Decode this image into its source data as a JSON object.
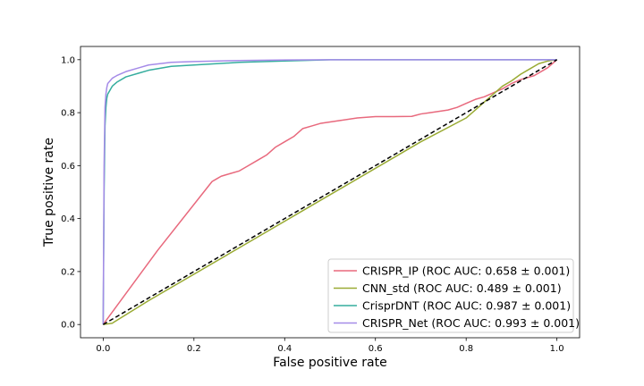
{
  "chart_data": {
    "type": "line",
    "title": "",
    "xlabel": "False positive rate",
    "ylabel": "True positive rate",
    "xlim": [
      -0.05,
      1.05
    ],
    "ylim": [
      -0.05,
      1.05
    ],
    "xticks": [
      "0.0",
      "0.2",
      "0.4",
      "0.6",
      "0.8",
      "1.0"
    ],
    "yticks": [
      "0.0",
      "0.2",
      "0.4",
      "0.6",
      "0.8",
      "1.0"
    ],
    "grid": false,
    "legend_position": "lower-right",
    "reference_line": {
      "x": [
        0,
        1
      ],
      "y": [
        0,
        1
      ],
      "color": "#000000",
      "style": "dashed"
    },
    "series": [
      {
        "name": "CRISPR_IP (ROC AUC: 0.658 ± 0.001)",
        "color": "#e8697d",
        "x": [
          0,
          0.002,
          0.12,
          0.24,
          0.25,
          0.26,
          0.28,
          0.3,
          0.32,
          0.34,
          0.36,
          0.38,
          0.4,
          0.42,
          0.44,
          0.46,
          0.48,
          0.52,
          0.56,
          0.6,
          0.64,
          0.68,
          0.7,
          0.72,
          0.74,
          0.76,
          0.78,
          0.8,
          0.82,
          0.84,
          0.86,
          0.88,
          0.9,
          0.92,
          0.95,
          0.98,
          1.0
        ],
        "y": [
          0,
          0.005,
          0.28,
          0.54,
          0.55,
          0.56,
          0.57,
          0.58,
          0.6,
          0.62,
          0.64,
          0.67,
          0.69,
          0.71,
          0.74,
          0.75,
          0.76,
          0.77,
          0.78,
          0.785,
          0.785,
          0.786,
          0.795,
          0.8,
          0.805,
          0.81,
          0.82,
          0.835,
          0.85,
          0.86,
          0.875,
          0.89,
          0.91,
          0.925,
          0.94,
          0.97,
          1.0
        ]
      },
      {
        "name": "CNN_std (ROC AUC: 0.489 ± 0.001)",
        "color": "#9aab34",
        "x": [
          0,
          0.02,
          0.1,
          0.3,
          0.5,
          0.7,
          0.8,
          0.82,
          0.84,
          0.86,
          0.88,
          0.9,
          0.92,
          0.94,
          0.96,
          0.98,
          1.0
        ],
        "y": [
          0,
          0.005,
          0.09,
          0.29,
          0.49,
          0.69,
          0.78,
          0.81,
          0.84,
          0.87,
          0.9,
          0.92,
          0.945,
          0.965,
          0.985,
          0.995,
          1.0
        ]
      },
      {
        "name": "CrisprDNT (ROC AUC: 0.987 ± 0.001)",
        "color": "#35ad9e",
        "x": [
          0,
          0.002,
          0.004,
          0.006,
          0.008,
          0.01,
          0.02,
          0.03,
          0.05,
          0.08,
          0.1,
          0.15,
          0.2,
          0.3,
          0.4,
          0.5,
          0.7,
          1.0
        ],
        "y": [
          0,
          0.5,
          0.75,
          0.82,
          0.855,
          0.87,
          0.9,
          0.915,
          0.935,
          0.95,
          0.96,
          0.975,
          0.98,
          0.99,
          0.995,
          1.0,
          1.0,
          1.0
        ]
      },
      {
        "name": "CRISPR_Net (ROC AUC: 0.993 ± 0.001)",
        "color": "#a58be8",
        "x": [
          0,
          0.002,
          0.004,
          0.006,
          0.008,
          0.01,
          0.02,
          0.03,
          0.05,
          0.08,
          0.1,
          0.15,
          0.2,
          0.3,
          0.4,
          0.5,
          0.7,
          1.0
        ],
        "y": [
          0,
          0.6,
          0.82,
          0.87,
          0.895,
          0.91,
          0.93,
          0.94,
          0.955,
          0.97,
          0.98,
          0.99,
          0.993,
          0.997,
          0.999,
          1.0,
          1.0,
          1.0
        ]
      }
    ]
  }
}
